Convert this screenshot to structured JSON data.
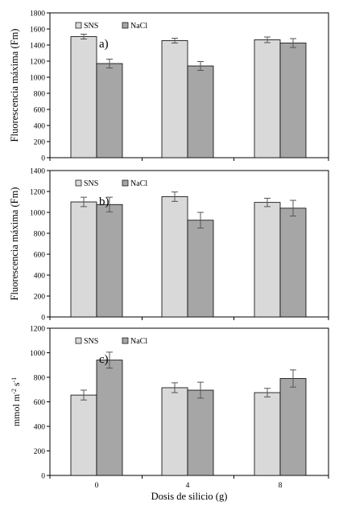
{
  "chart_data": [
    {
      "type": "bar",
      "panel_label": "a)",
      "ylabel": "Fluorescencia máxima  (Fm)",
      "xlabel": "",
      "ylim": [
        0,
        1800
      ],
      "yticks": [
        "0",
        "200",
        "400",
        "600",
        "800",
        "1000",
        "1200",
        "1400",
        "1600",
        "1800"
      ],
      "categories": [
        "0",
        "4",
        "8"
      ],
      "show_x_tick_labels": false,
      "series": [
        {
          "name": "SNS",
          "color": "#d9d9d9",
          "values": [
            1505,
            1455,
            1465
          ],
          "errors": [
            30,
            30,
            35
          ]
        },
        {
          "name": "NaCl",
          "color": "#a6a6a6",
          "values": [
            1170,
            1140,
            1425
          ],
          "errors": [
            55,
            55,
            55
          ]
        }
      ],
      "legend": "top-left",
      "grid": false
    },
    {
      "type": "bar",
      "panel_label": "b)",
      "ylabel": "Fluorescencia máxima  (Fm)",
      "xlabel": "",
      "ylim": [
        0,
        1400
      ],
      "yticks": [
        "0",
        "200",
        "400",
        "600",
        "800",
        "1000",
        "1200",
        "1400"
      ],
      "categories": [
        "0",
        "4",
        "8"
      ],
      "show_x_tick_labels": false,
      "series": [
        {
          "name": "SNS",
          "color": "#d9d9d9",
          "values": [
            1100,
            1150,
            1095
          ],
          "errors": [
            45,
            45,
            40
          ]
        },
        {
          "name": "NaCl",
          "color": "#a6a6a6",
          "values": [
            1075,
            925,
            1040
          ],
          "errors": [
            70,
            75,
            75
          ]
        }
      ],
      "legend": "top-left",
      "grid": false
    },
    {
      "type": "bar",
      "panel_label": "c)",
      "ylabel": "mmol m-2 s-1",
      "ylabel_parts": {
        "a": "mmol m",
        "s1": "-2",
        "b": " s",
        "s2": "-1"
      },
      "xlabel": "Dosis de silicio  (g)",
      "ylim": [
        0,
        1200
      ],
      "yticks": [
        "0",
        "200",
        "400",
        "600",
        "800",
        "1000",
        "1200"
      ],
      "categories": [
        "0",
        "4",
        "8"
      ],
      "show_x_tick_labels": true,
      "series": [
        {
          "name": "SNS",
          "color": "#d9d9d9",
          "values": [
            655,
            715,
            675
          ],
          "errors": [
            40,
            40,
            35
          ]
        },
        {
          "name": "NaCl",
          "color": "#a6a6a6",
          "values": [
            940,
            695,
            790
          ],
          "errors": [
            65,
            65,
            70
          ]
        }
      ],
      "legend": "top-left",
      "grid": false
    }
  ]
}
